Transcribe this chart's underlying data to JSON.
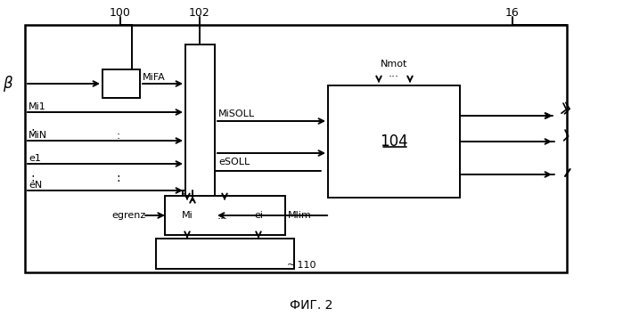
{
  "fig_width": 6.99,
  "fig_height": 3.55,
  "bg_color": "#ffffff",
  "title": "ФИГ. 2",
  "labels": {
    "beta": "β",
    "100": "100",
    "102": "102",
    "104": "104",
    "16": "16",
    "110": "110",
    "MiFA": "MiFA",
    "Mi1": "Mi1",
    "MiN": "MiN :",
    "e1": "e1",
    "eN": "eN",
    "MiSOLL": "MiSOLL",
    "eSOLL": "eSOLL",
    "Nmot": "Nmot",
    "egrenz": "egrenz",
    "Mi": "Mi",
    "dots": "...",
    "ei": "ei",
    "Mlim": "Mlim"
  }
}
